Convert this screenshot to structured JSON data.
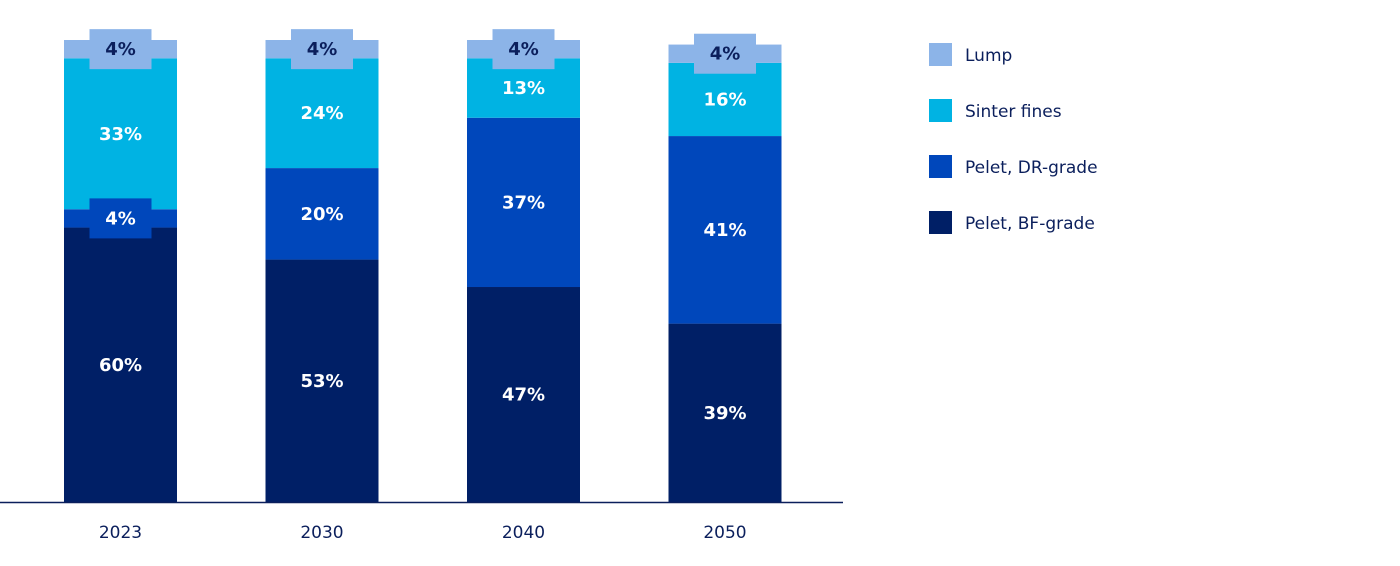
{
  "chart_data": {
    "type": "bar",
    "stacked": true,
    "categories": [
      "2023",
      "2030",
      "2040",
      "2050"
    ],
    "series": [
      {
        "name": "Pelet, BF-grade",
        "color": "#001f66",
        "values": [
          60,
          53,
          47,
          39
        ]
      },
      {
        "name": "Pelet, DR-grade",
        "color": "#0047bb",
        "values": [
          4,
          20,
          37,
          41
        ]
      },
      {
        "name": "Sinter fines",
        "color": "#00b3e3",
        "values": [
          33,
          24,
          13,
          16
        ]
      },
      {
        "name": "Lump",
        "color": "#8cb4e8",
        "values": [
          4,
          4,
          4,
          4
        ]
      }
    ],
    "value_labels": [
      [
        "60%",
        "53%",
        "47%",
        "39%"
      ],
      [
        "4%",
        "20%",
        "37%",
        "41%"
      ],
      [
        "33%",
        "24%",
        "13%",
        "16%"
      ],
      [
        "4%",
        "4%",
        "4%",
        "4%"
      ]
    ],
    "legend": {
      "placement": "right",
      "items": [
        "Lump",
        "Sinter fines",
        "Pelet, DR-grade",
        "Pelet, BF-grade"
      ]
    },
    "ylim": [
      0,
      101
    ],
    "grid": false,
    "axis_color": "#0b1f5c"
  }
}
